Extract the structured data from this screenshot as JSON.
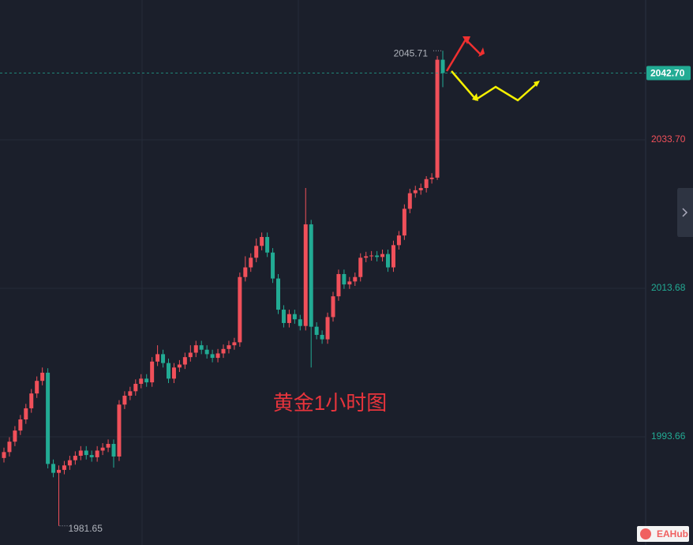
{
  "chart_data": {
    "type": "candlestick",
    "annotation": "黄金1小时图",
    "high_label": 2045.71,
    "low_label": 1981.65,
    "last_price": {
      "value": 2042.7,
      "label": "2042.70"
    },
    "logo": "EAHub",
    "up_color": "#f0505a",
    "down_color": "#22ab94",
    "categories": [
      null,
      null,
      null,
      null,
      null,
      null,
      null,
      null,
      null,
      null,
      null,
      null,
      null,
      null,
      null,
      null,
      null,
      null,
      null,
      null,
      null,
      null,
      null,
      null,
      null,
      null,
      null,
      null,
      null,
      null,
      null,
      null,
      null,
      null,
      null,
      null,
      null,
      null,
      null,
      null,
      null,
      null,
      null,
      null,
      null,
      null,
      null,
      null,
      null,
      null,
      null,
      null,
      null,
      null,
      null,
      null,
      null,
      null,
      null,
      null,
      null,
      null,
      null,
      null,
      null,
      null,
      null,
      null,
      null,
      null,
      null,
      null,
      null,
      null,
      null,
      null,
      null,
      null,
      null,
      null,
      null
    ],
    "open": [
      1990.8,
      1991.6,
      1993.0,
      1994.5,
      1996.0,
      1997.5,
      1999.5,
      2001.2,
      2002.3,
      1990.0,
      1988.8,
      1989.2,
      1989.8,
      1990.5,
      1991.1,
      1991.8,
      1991.2,
      1990.9,
      1991.8,
      1992.2,
      1992.7,
      1991.0,
      1998.0,
      1999.2,
      1999.8,
      2000.8,
      2001.5,
      2001.0,
      2003.8,
      2004.8,
      2003.6,
      2001.5,
      2003.0,
      2003.4,
      2004.4,
      2005.0,
      2006.0,
      2005.4,
      2004.8,
      2004.3,
      2004.9,
      2005.5,
      2006.0,
      2006.4,
      2015.2,
      2016.5,
      2017.8,
      2019.4,
      2020.6,
      2018.5,
      2015.0,
      2010.8,
      2009.0,
      2010.2,
      2009.5,
      2008.6,
      2022.3,
      2008.5,
      2007.4,
      2006.8,
      2009.8,
      2012.6,
      2015.6,
      2014.2,
      2014.6,
      2015.2,
      2017.8,
      2018.0,
      2018.1,
      2017.9,
      2018.3,
      2016.5,
      2019.5,
      2020.8,
      2024.4,
      2026.5,
      2026.9,
      2027.2,
      2028.4,
      2028.6,
      2044.5
    ],
    "high": [
      1992.2,
      1993.6,
      1995.1,
      1996.6,
      1998.1,
      2000.1,
      2001.8,
      2003.0,
      2002.9,
      1990.6,
      1989.8,
      1990.4,
      1991.1,
      1991.7,
      1992.4,
      1992.4,
      1991.8,
      1992.4,
      1992.8,
      1993.3,
      1993.3,
      1998.6,
      1999.8,
      2000.4,
      2001.4,
      2002.1,
      2002.1,
      2004.4,
      2006.0,
      2005.4,
      2004.2,
      2003.6,
      2004.0,
      2005.0,
      2006.0,
      2006.6,
      2006.6,
      2006.0,
      2005.4,
      2005.5,
      2006.1,
      2006.6,
      2007.0,
      2015.8,
      2018.0,
      2018.4,
      2020.4,
      2021.2,
      2021.2,
      2019.1,
      2015.6,
      2011.4,
      2010.8,
      2010.8,
      2010.1,
      2027.2,
      2022.9,
      2009.1,
      2008.0,
      2010.4,
      2013.2,
      2016.2,
      2016.2,
      2015.2,
      2015.8,
      2018.4,
      2018.6,
      2018.7,
      2018.7,
      2018.9,
      2018.9,
      2020.1,
      2021.4,
      2025.0,
      2027.1,
      2027.5,
      2027.8,
      2028.8,
      2029.2,
      2045.0,
      2045.71
    ],
    "low": [
      1990.2,
      1991.0,
      1992.4,
      1993.9,
      1995.4,
      1996.9,
      1998.9,
      2000.6,
      1989.4,
      1988.2,
      1981.65,
      1988.6,
      1989.2,
      1989.9,
      1990.5,
      1990.6,
      1990.3,
      1990.3,
      1991.2,
      1991.6,
      1989.5,
      1990.4,
      1997.4,
      1998.6,
      1999.2,
      2000.2,
      2000.4,
      2000.4,
      2003.2,
      2003.0,
      2000.9,
      2000.9,
      2002.4,
      2002.8,
      2003.8,
      2004.4,
      2004.8,
      2004.2,
      2003.7,
      2003.7,
      2004.3,
      2004.9,
      2005.4,
      2005.8,
      2014.6,
      2015.9,
      2017.2,
      2018.8,
      2017.9,
      2014.4,
      2010.2,
      2008.4,
      2008.4,
      2008.9,
      2008.0,
      2008.0,
      2003.0,
      2006.8,
      2006.2,
      2006.2,
      2009.2,
      2012.0,
      2013.6,
      2013.6,
      2014.0,
      2014.6,
      2017.2,
      2017.4,
      2017.3,
      2017.3,
      2015.9,
      2015.9,
      2018.9,
      2020.2,
      2023.8,
      2025.9,
      2026.3,
      2026.6,
      2027.8,
      2028.3,
      2040.8
    ],
    "close": [
      1991.6,
      1993.0,
      1994.5,
      1996.0,
      1997.5,
      1999.5,
      2001.2,
      2002.3,
      1990.0,
      1988.8,
      1989.2,
      1989.8,
      1990.5,
      1991.1,
      1991.8,
      1991.2,
      1990.9,
      1991.8,
      1992.2,
      1992.7,
      1991.0,
      1998.0,
      1999.2,
      1999.8,
      2000.8,
      2001.5,
      2001.0,
      2003.8,
      2004.8,
      2003.6,
      2001.5,
      2003.0,
      2003.4,
      2004.4,
      2005.0,
      2006.0,
      2005.4,
      2004.8,
      2004.3,
      2004.9,
      2005.5,
      2006.0,
      2006.4,
      2015.2,
      2016.5,
      2017.8,
      2019.4,
      2020.6,
      2018.5,
      2015.0,
      2010.8,
      2009.0,
      2010.2,
      2009.5,
      2008.6,
      2022.3,
      2008.5,
      2007.4,
      2006.8,
      2009.8,
      2012.6,
      2015.6,
      2014.2,
      2014.6,
      2015.2,
      2017.8,
      2018.0,
      2018.1,
      2017.9,
      2018.3,
      2016.5,
      2019.5,
      2020.8,
      2024.4,
      2026.5,
      2026.9,
      2027.2,
      2028.4,
      2028.6,
      2044.5,
      2042.7
    ],
    "ylim": [
      1979.07,
      2052.55
    ],
    "yticks": [
      1993.66,
      2013.68,
      {
        "value": 2033.7,
        "label": "2033.70"
      }
    ],
    "ytick_colors": [
      "#22ab94",
      "#22ab94",
      "#f0505a"
    ],
    "grid": true
  }
}
